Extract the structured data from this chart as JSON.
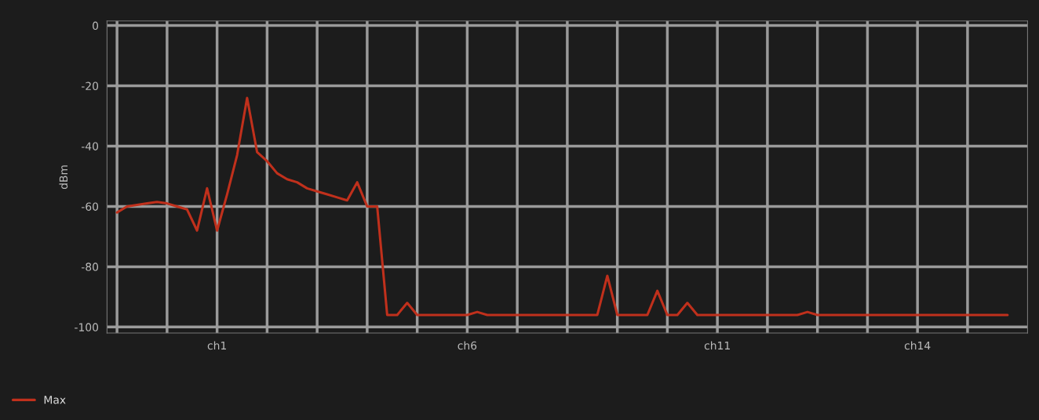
{
  "chart_data": {
    "type": "line",
    "ylabel": "dBm",
    "categories": [
      null,
      null,
      null,
      null,
      null,
      null,
      null,
      null,
      null,
      null,
      "ch1",
      null,
      null,
      null,
      null,
      null,
      null,
      null,
      null,
      null,
      null,
      null,
      null,
      null,
      null,
      null,
      null,
      null,
      null,
      null,
      null,
      null,
      null,
      null,
      null,
      "ch6",
      null,
      null,
      null,
      null,
      null,
      null,
      null,
      null,
      null,
      null,
      null,
      null,
      null,
      null,
      null,
      null,
      null,
      null,
      null,
      null,
      null,
      null,
      null,
      null,
      "ch11",
      null,
      null,
      null,
      null,
      null,
      null,
      null,
      null,
      null,
      null,
      null,
      null,
      null,
      null,
      null,
      null,
      null,
      null,
      null,
      "ch14",
      null,
      null,
      null,
      null,
      null,
      null,
      null,
      null,
      null
    ],
    "series": [
      {
        "name": "Max",
        "color": "#c0301c",
        "values": [
          -62,
          -60,
          -59.5,
          -59,
          -58.5,
          -59,
          -60,
          -61,
          -68,
          -54,
          -68,
          -56,
          -43,
          -24,
          -42,
          -45,
          -49,
          -51,
          -52,
          -54,
          -55,
          -56,
          -57,
          -58,
          -52,
          -60,
          -60,
          -96,
          -96,
          -92,
          -96,
          -96,
          -96,
          -96,
          -96,
          -96,
          -95,
          -96,
          -96,
          -96,
          -96,
          -96,
          -96,
          -96,
          -96,
          -96,
          -96,
          -96,
          -96,
          -83,
          -96,
          -96,
          -96,
          -96,
          -88,
          -96,
          -96,
          -92,
          -96,
          -96,
          -96,
          -96,
          -96,
          -96,
          -96,
          -96,
          -96,
          -96,
          -96,
          -95,
          -96,
          -96,
          -96,
          -96,
          -96,
          -96,
          -96,
          -96,
          -96,
          -96,
          -96,
          -96,
          -96,
          -96,
          -96,
          -96,
          -96,
          -96,
          -96,
          -96
        ]
      }
    ],
    "ylim": [
      -102,
      1.5
    ],
    "yticks": [
      0,
      -20,
      -40,
      -60,
      -80,
      -100
    ],
    "grid": true,
    "legend": "bottom left",
    "marker": "none",
    "line_style": "solid"
  }
}
